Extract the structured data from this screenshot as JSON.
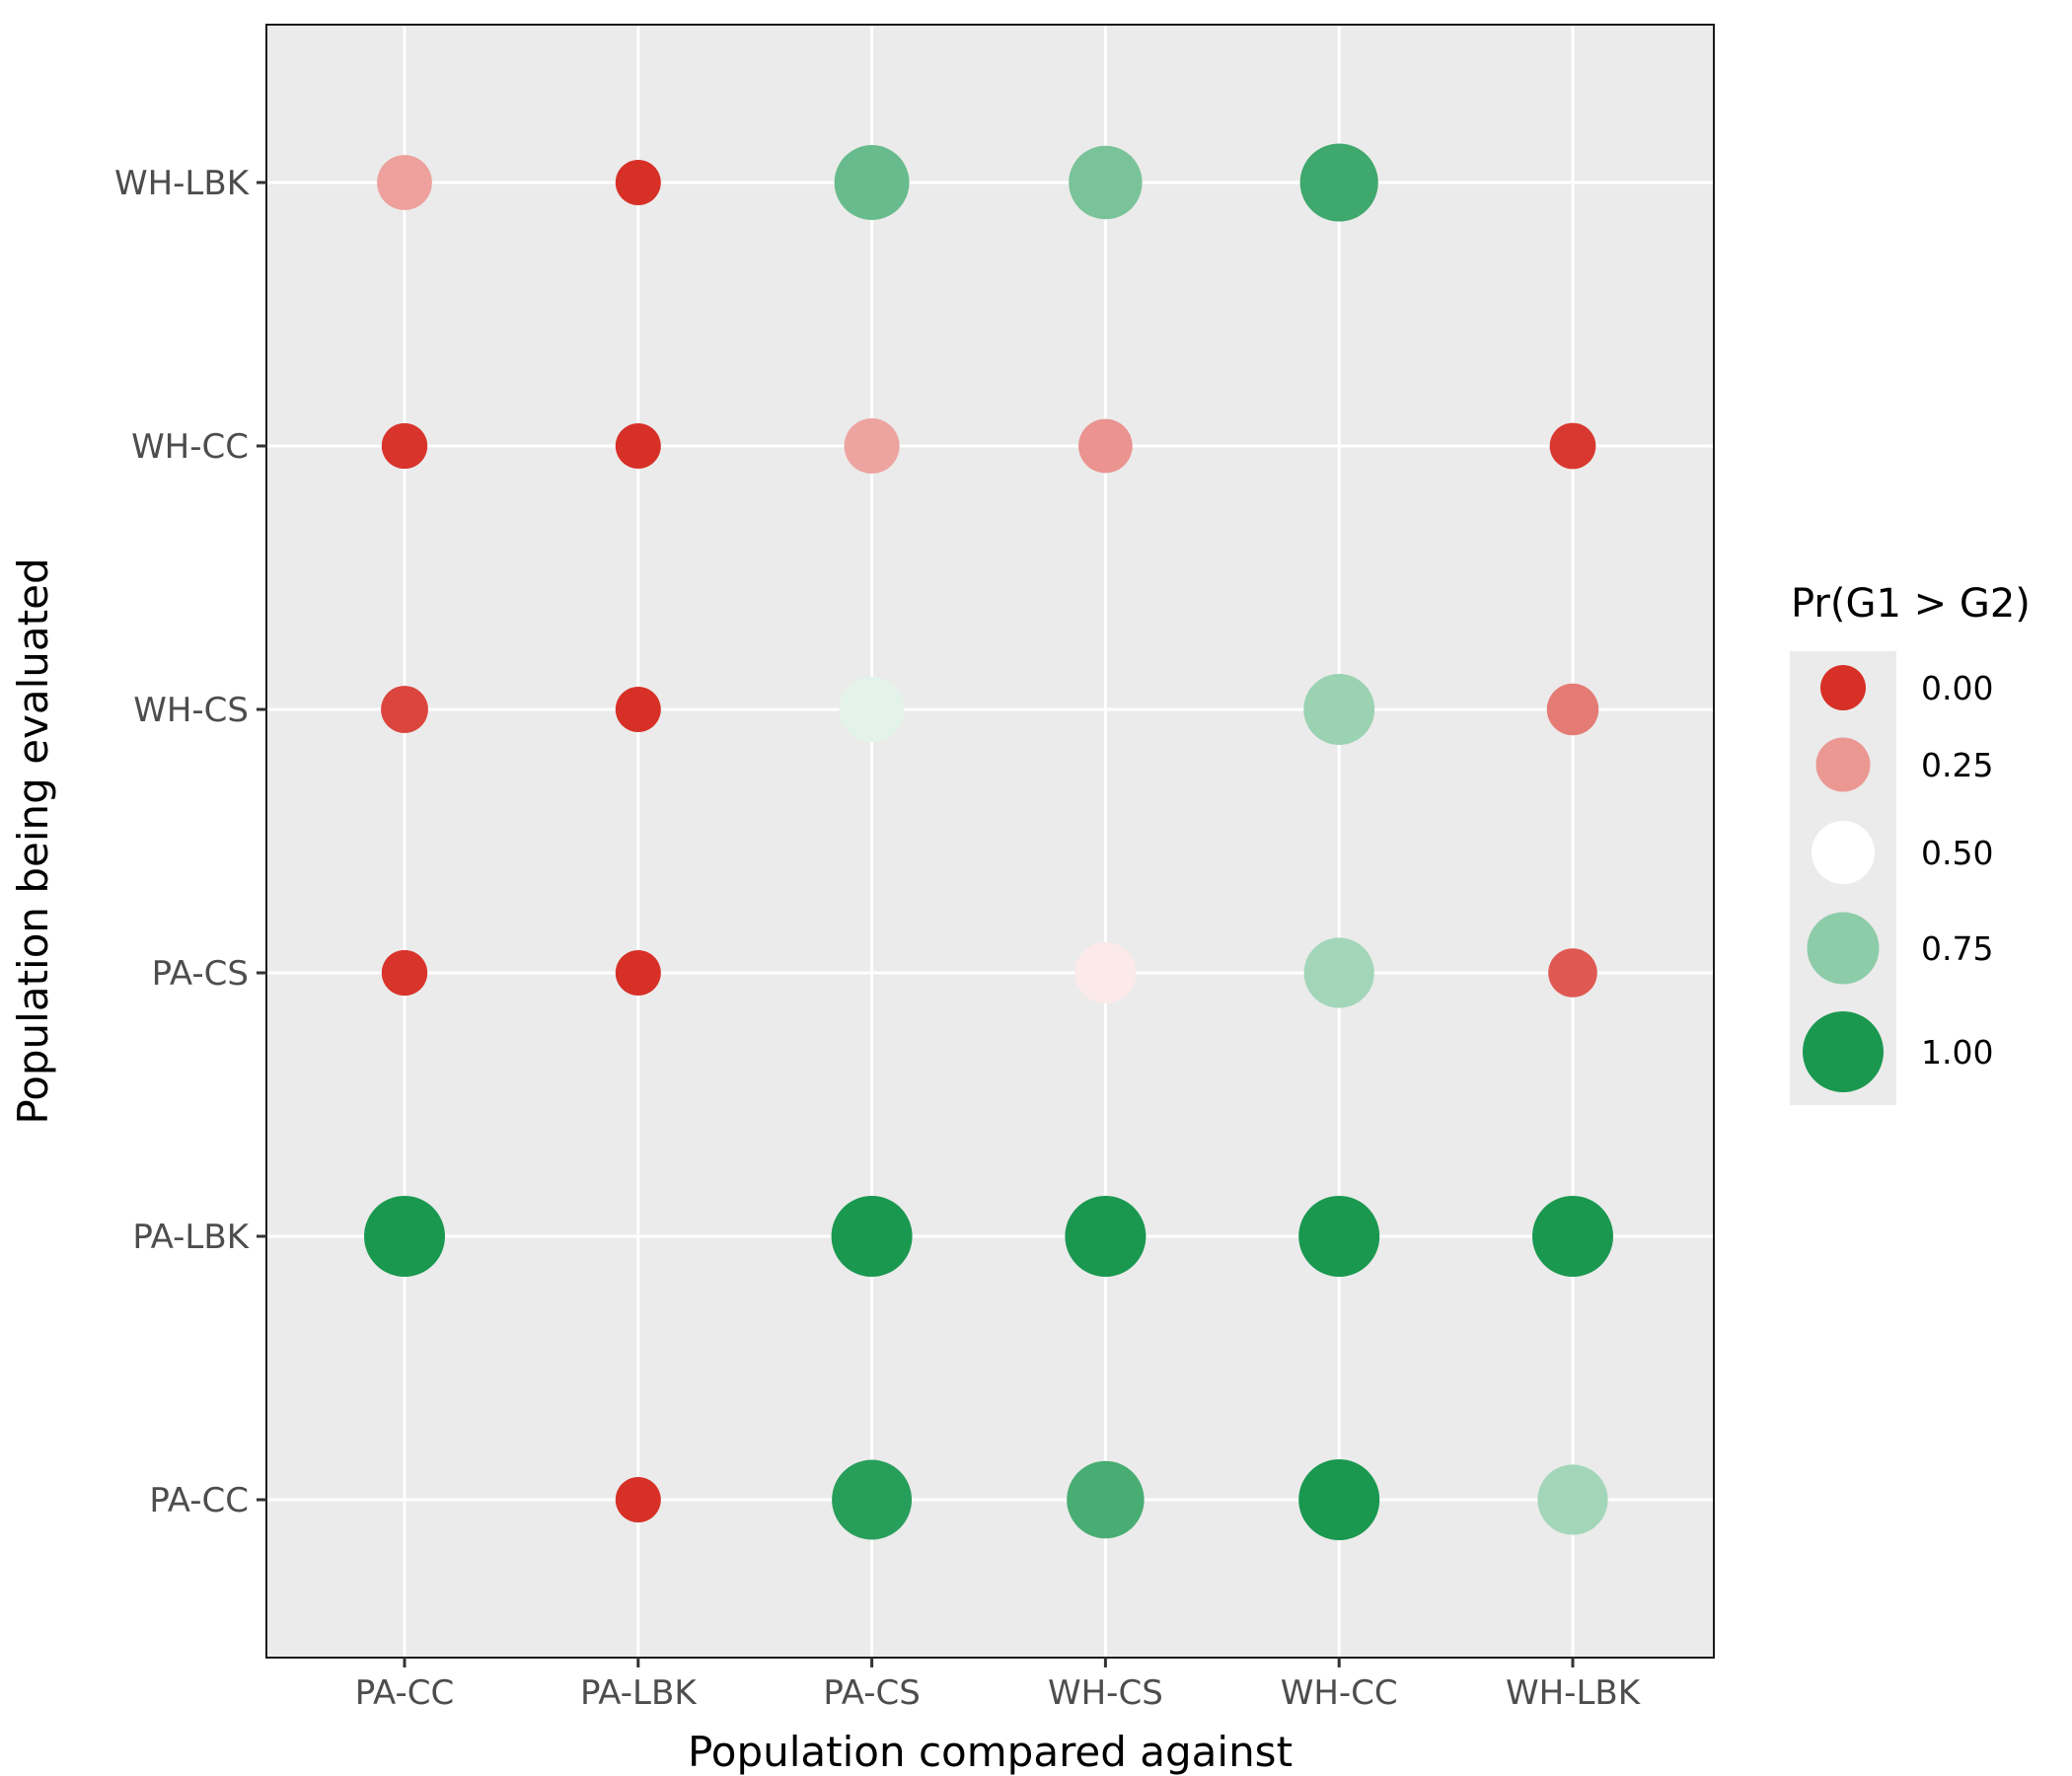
{
  "chart_data": {
    "type": "scatter",
    "title": "",
    "xlabel": "Population compared against",
    "ylabel": "Population being evaluated",
    "x_categories": [
      "PA-CC",
      "PA-LBK",
      "PA-CS",
      "WH-CS",
      "WH-CC",
      "WH-LBK"
    ],
    "y_categories": [
      "PA-CC",
      "PA-LBK",
      "PA-CS",
      "WH-CS",
      "WH-CC",
      "WH-LBK"
    ],
    "grid": true,
    "legend": {
      "title": "Pr(G1 > G2)",
      "placement": "right",
      "breaks": [
        0.0,
        0.25,
        0.5,
        0.75,
        1.0
      ],
      "labels": [
        "0.00",
        "0.25",
        "0.50",
        "0.75",
        "1.00"
      ]
    },
    "encoding": {
      "size": "value",
      "color": "value"
    },
    "colors": {
      "low": "#d73027",
      "mid": "#ffffff",
      "high": "#1a9850",
      "panel": "#ebebeb",
      "grid": "#ffffff"
    },
    "points": [
      {
        "x": "PA-CC",
        "y": "WH-LBK",
        "value": 0.27
      },
      {
        "x": "PA-LBK",
        "y": "WH-LBK",
        "value": 0.0
      },
      {
        "x": "PA-CS",
        "y": "WH-LBK",
        "value": 0.83
      },
      {
        "x": "WH-CS",
        "y": "WH-LBK",
        "value": 0.79
      },
      {
        "x": "WH-CC",
        "y": "WH-LBK",
        "value": 0.92
      },
      {
        "x": "PA-CC",
        "y": "WH-CC",
        "value": 0.01
      },
      {
        "x": "PA-LBK",
        "y": "WH-CC",
        "value": 0.0
      },
      {
        "x": "PA-CS",
        "y": "WH-CC",
        "value": 0.28
      },
      {
        "x": "WH-CS",
        "y": "WH-CC",
        "value": 0.24
      },
      {
        "x": "WH-LBK",
        "y": "WH-CC",
        "value": 0.02
      },
      {
        "x": "PA-CC",
        "y": "WH-CS",
        "value": 0.05
      },
      {
        "x": "PA-LBK",
        "y": "WH-CS",
        "value": 0.0
      },
      {
        "x": "PA-CS",
        "y": "WH-CS",
        "value": 0.56
      },
      {
        "x": "WH-CC",
        "y": "WH-CS",
        "value": 0.72
      },
      {
        "x": "WH-LBK",
        "y": "WH-CS",
        "value": 0.18
      },
      {
        "x": "PA-CC",
        "y": "PA-CS",
        "value": 0.01
      },
      {
        "x": "PA-LBK",
        "y": "PA-CS",
        "value": 0.0
      },
      {
        "x": "WH-CS",
        "y": "PA-CS",
        "value": 0.45
      },
      {
        "x": "WH-CC",
        "y": "PA-CS",
        "value": 0.7
      },
      {
        "x": "WH-LBK",
        "y": "PA-CS",
        "value": 0.1
      },
      {
        "x": "PA-CC",
        "y": "PA-LBK",
        "value": 1.0
      },
      {
        "x": "PA-CS",
        "y": "PA-LBK",
        "value": 1.0
      },
      {
        "x": "WH-CS",
        "y": "PA-LBK",
        "value": 1.0
      },
      {
        "x": "WH-CC",
        "y": "PA-LBK",
        "value": 1.0
      },
      {
        "x": "WH-LBK",
        "y": "PA-LBK",
        "value": 1.0
      },
      {
        "x": "PA-LBK",
        "y": "PA-CC",
        "value": 0.0
      },
      {
        "x": "PA-CS",
        "y": "PA-CC",
        "value": 0.97
      },
      {
        "x": "WH-CS",
        "y": "PA-CC",
        "value": 0.9
      },
      {
        "x": "WH-CC",
        "y": "PA-CC",
        "value": 1.0
      },
      {
        "x": "WH-LBK",
        "y": "PA-CC",
        "value": 0.7
      }
    ]
  }
}
